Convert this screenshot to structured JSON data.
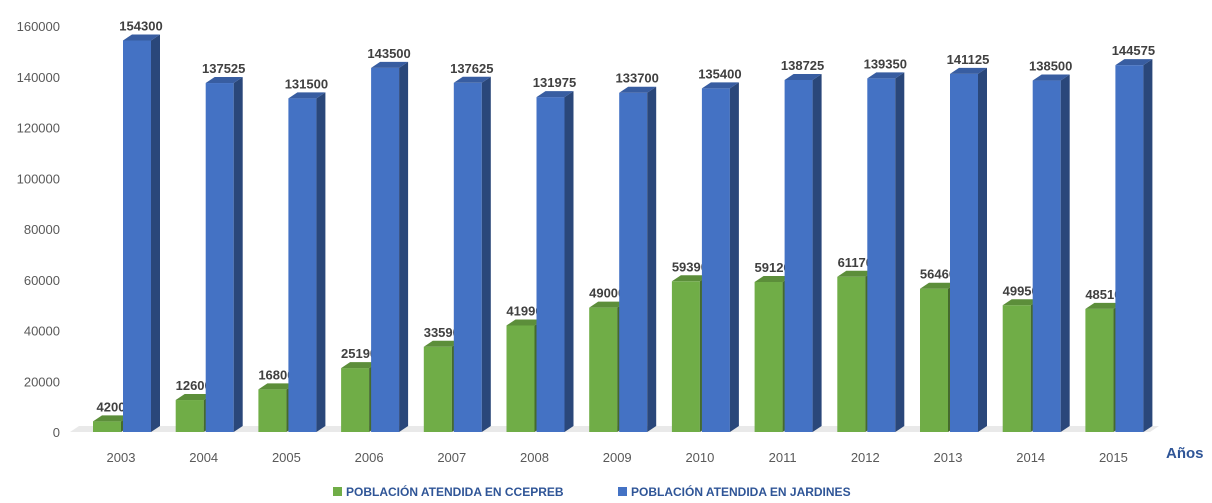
{
  "chart_data": {
    "type": "bar",
    "categories": [
      "2003",
      "2004",
      "2005",
      "2006",
      "2007",
      "2008",
      "2009",
      "2010",
      "2011",
      "2012",
      "2013",
      "2014",
      "2015"
    ],
    "series": [
      {
        "name": "POBLACIÓN ATENDIDA EN CCEPREB",
        "color": "#70AD47",
        "values": [
          4200,
          12600,
          16800,
          25190,
          33590,
          41990,
          49000,
          59390,
          59120,
          61170,
          56460,
          49950,
          48510
        ]
      },
      {
        "name": "POBLACIÓN ATENDIDA EN JARDINES",
        "color": "#4472C4",
        "values": [
          154300,
          137525,
          131500,
          143500,
          137625,
          131975,
          133700,
          135400,
          138725,
          139350,
          141125,
          138500,
          144575
        ]
      }
    ],
    "yticks": [
      "0",
      "20000",
      "40000",
      "60000",
      "80000",
      "100000",
      "120000",
      "140000",
      "160000"
    ],
    "ylim": [
      0,
      160000
    ],
    "xlabel": "Años",
    "ylabel": "",
    "title": "",
    "grid": false,
    "legend_position": "bottom"
  }
}
